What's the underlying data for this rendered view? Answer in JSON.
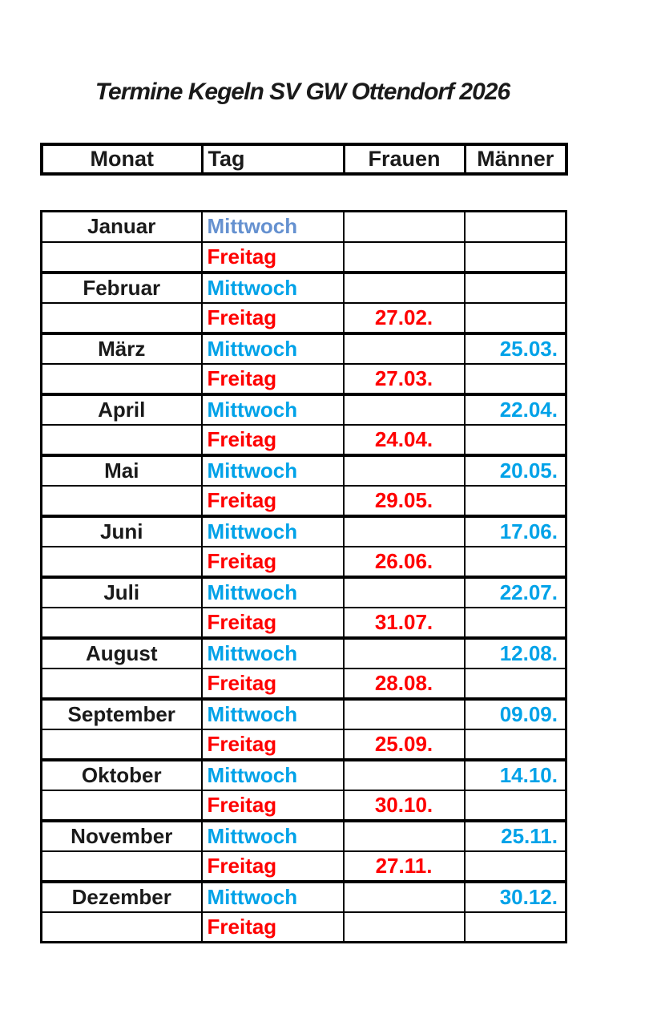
{
  "title": "Termine Kegeln SV GW Ottendorf 2026",
  "colors": {
    "text_black": "#1a1a1a",
    "friday_red": "#fe0000",
    "wednesday_blue": "#00a2e8",
    "january_muted_blue": "#6591d0",
    "border_black": "#000000",
    "page_background": "#ffffff"
  },
  "header": {
    "monat": "Monat",
    "tag": "Tag",
    "frauen": "Frauen",
    "maenner": "Männer"
  },
  "rows": [
    {
      "monat": "Januar",
      "tag": "Mittwoch",
      "tag_color": "january_muted_blue",
      "frauen": "",
      "maenner": "",
      "month_start": true
    },
    {
      "monat": "",
      "tag": "Freitag",
      "tag_color": "friday_red",
      "frauen": "",
      "maenner": "",
      "month_start": false
    },
    {
      "monat": "Februar",
      "tag": "Mittwoch",
      "tag_color": "wednesday_blue",
      "frauen": "",
      "maenner": "",
      "month_start": true
    },
    {
      "monat": "",
      "tag": "Freitag",
      "tag_color": "friday_red",
      "frauen": "27.02.",
      "maenner": "",
      "month_start": false
    },
    {
      "monat": "März",
      "tag": "Mittwoch",
      "tag_color": "wednesday_blue",
      "frauen": "",
      "maenner": "25.03.",
      "month_start": true
    },
    {
      "monat": "",
      "tag": "Freitag",
      "tag_color": "friday_red",
      "frauen": "27.03.",
      "maenner": "",
      "month_start": false
    },
    {
      "monat": "April",
      "tag": "Mittwoch",
      "tag_color": "wednesday_blue",
      "frauen": "",
      "maenner": "22.04.",
      "month_start": true
    },
    {
      "monat": "",
      "tag": "Freitag",
      "tag_color": "friday_red",
      "frauen": "24.04.",
      "maenner": "",
      "month_start": false
    },
    {
      "monat": "Mai",
      "tag": "Mittwoch",
      "tag_color": "wednesday_blue",
      "frauen": "",
      "maenner": "20.05.",
      "month_start": true
    },
    {
      "monat": "",
      "tag": "Freitag",
      "tag_color": "friday_red",
      "frauen": "29.05.",
      "maenner": "",
      "month_start": false
    },
    {
      "monat": "Juni",
      "tag": "Mittwoch",
      "tag_color": "wednesday_blue",
      "frauen": "",
      "maenner": "17.06.",
      "month_start": true
    },
    {
      "monat": "",
      "tag": "Freitag",
      "tag_color": "friday_red",
      "frauen": "26.06.",
      "maenner": "",
      "month_start": false
    },
    {
      "monat": "Juli",
      "tag": "Mittwoch",
      "tag_color": "wednesday_blue",
      "frauen": "",
      "maenner": "22.07.",
      "month_start": true
    },
    {
      "monat": "",
      "tag": "Freitag",
      "tag_color": "friday_red",
      "frauen": "31.07.",
      "maenner": "",
      "month_start": false
    },
    {
      "monat": "August",
      "tag": "Mittwoch",
      "tag_color": "wednesday_blue",
      "frauen": "",
      "maenner": "12.08.",
      "month_start": true
    },
    {
      "monat": "",
      "tag": "Freitag",
      "tag_color": "friday_red",
      "frauen": "28.08.",
      "maenner": "",
      "month_start": false
    },
    {
      "monat": "September",
      "tag": "Mittwoch",
      "tag_color": "wednesday_blue",
      "frauen": "",
      "maenner": "09.09.",
      "month_start": true
    },
    {
      "monat": "",
      "tag": "Freitag",
      "tag_color": "friday_red",
      "frauen": "25.09.",
      "maenner": "",
      "month_start": false
    },
    {
      "monat": "Oktober",
      "tag": "Mittwoch",
      "tag_color": "wednesday_blue",
      "frauen": "",
      "maenner": "14.10.",
      "month_start": true
    },
    {
      "monat": "",
      "tag": "Freitag",
      "tag_color": "friday_red",
      "frauen": "30.10.",
      "maenner": "",
      "month_start": false
    },
    {
      "monat": "November",
      "tag": "Mittwoch",
      "tag_color": "wednesday_blue",
      "frauen": "",
      "maenner": "25.11.",
      "month_start": true
    },
    {
      "monat": "",
      "tag": "Freitag",
      "tag_color": "friday_red",
      "frauen": "27.11.",
      "maenner": "",
      "month_start": false
    },
    {
      "monat": "Dezember",
      "tag": "Mittwoch",
      "tag_color": "wednesday_blue",
      "frauen": "",
      "maenner": "30.12.",
      "month_start": true
    },
    {
      "monat": "",
      "tag": "Freitag",
      "tag_color": "friday_red",
      "frauen": "",
      "maenner": "",
      "month_start": false
    }
  ]
}
